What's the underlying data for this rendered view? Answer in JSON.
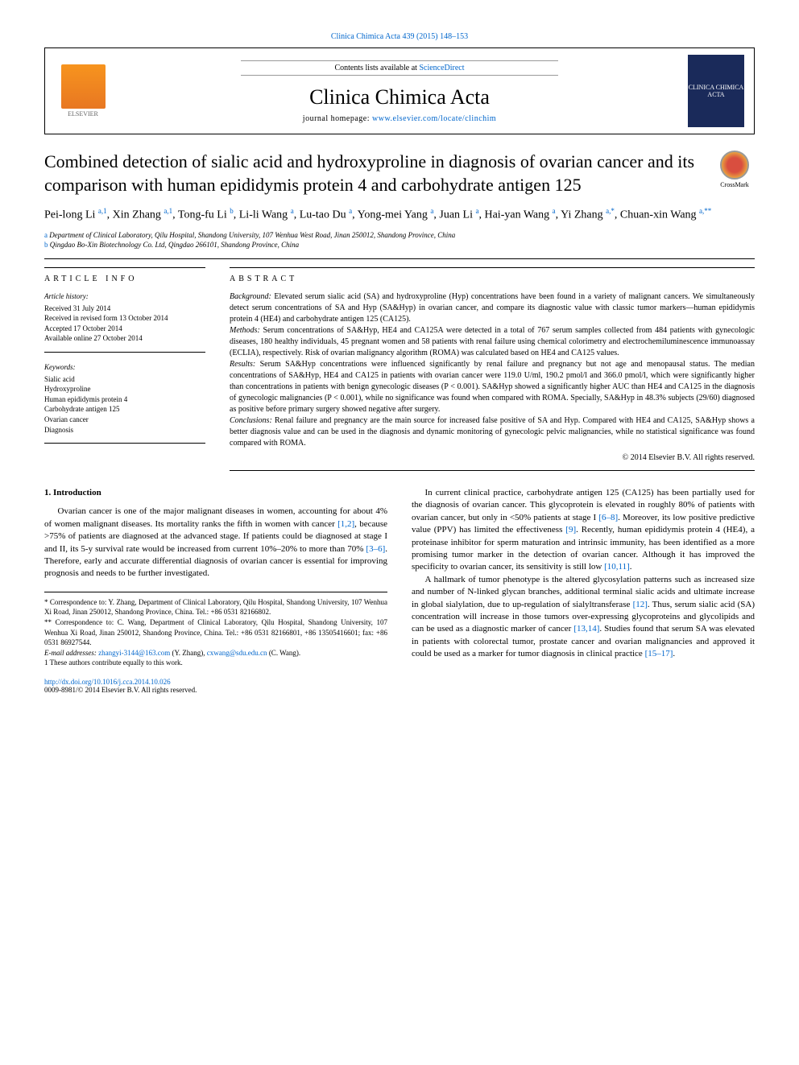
{
  "topRef": "Clinica Chimica Acta 439 (2015) 148–153",
  "header": {
    "contentsLine": "Contents lists available at ",
    "scienceDirect": "ScienceDirect",
    "journalName": "Clinica Chimica Acta",
    "homepagePrefix": "journal homepage: ",
    "homepageUrl": "www.elsevier.com/locate/clinchim",
    "elsevierLabel": "ELSEVIER",
    "coverText": "CLINICA CHIMICA ACTA"
  },
  "crossmark": "CrossMark",
  "title": "Combined detection of sialic acid and hydroxyproline in diagnosis of ovarian cancer and its comparison with human epididymis protein 4 and carbohydrate antigen 125",
  "authorsHtml": "Pei-long Li <sup>a,1</sup>, Xin Zhang <sup>a,1</sup>, Tong-fu Li <sup>b</sup>, Li-li Wang <sup>a</sup>, Lu-tao Du <sup>a</sup>, Yong-mei Yang <sup>a</sup>, Juan Li <sup>a</sup>, Hai-yan Wang <sup>a</sup>, Yi Zhang <sup>a,*</sup>, Chuan-xin Wang <sup>a,**</sup>",
  "affiliations": {
    "a": "Department of Clinical Laboratory, Qilu Hospital, Shandong University, 107 Wenhua West Road, Jinan 250012, Shandong Province, China",
    "b": "Qingdao Bo-Xin Biotechnology Co. Ltd, Qingdao 266101, Shandong Province, China"
  },
  "articleInfo": {
    "heading": "ARTICLE INFO",
    "historyLabel": "Article history:",
    "history": [
      "Received 31 July 2014",
      "Received in revised form 13 October 2014",
      "Accepted 17 October 2014",
      "Available online 27 October 2014"
    ],
    "keywordsLabel": "Keywords:",
    "keywords": [
      "Sialic acid",
      "Hydroxyproline",
      "Human epididymis protein 4",
      "Carbohydrate antigen 125",
      "Ovarian cancer",
      "Diagnosis"
    ]
  },
  "abstract": {
    "heading": "ABSTRACT",
    "background": "Elevated serum sialic acid (SA) and hydroxyproline (Hyp) concentrations have been found in a variety of malignant cancers. We simultaneously detect serum concentrations of SA and Hyp (SA&Hyp) in ovarian cancer, and compare its diagnostic value with classic tumor markers—human epididymis protein 4 (HE4) and carbohydrate antigen 125 (CA125).",
    "methods": "Serum concentrations of SA&Hyp, HE4 and CA125A were detected in a total of 767 serum samples collected from 484 patients with gynecologic diseases, 180 healthy individuals, 45 pregnant women and 58 patients with renal failure using chemical colorimetry and electrochemiluminescence immunoassay (ECLIA), respectively. Risk of ovarian malignancy algorithm (ROMA) was calculated based on HE4 and CA125 values.",
    "results": "Serum SA&Hyp concentrations were influenced significantly by renal failure and pregnancy but not age and menopausal status. The median concentrations of SA&Hyp, HE4 and CA125 in patients with ovarian cancer were 119.0 U/ml, 190.2 pmol/l and 366.0 pmol/l, which were significantly higher than concentrations in patients with benign gynecologic diseases (P < 0.001). SA&Hyp showed a significantly higher AUC than HE4 and CA125 in the diagnosis of gynecologic malignancies (P < 0.001), while no significance was found when compared with ROMA. Specially, SA&Hyp in 48.3% subjects (29/60) diagnosed as positive before primary surgery showed negative after surgery.",
    "conclusions": "Renal failure and pregnancy are the main source for increased false positive of SA and Hyp. Compared with HE4 and CA125, SA&Hyp shows a better diagnosis value and can be used in the diagnosis and dynamic monitoring of gynecologic pelvic malignancies, while no statistical significance was found compared with ROMA.",
    "copyright": "© 2014 Elsevier B.V. All rights reserved."
  },
  "body": {
    "introHeading": "1. Introduction",
    "leftParas": [
      "Ovarian cancer is one of the major malignant diseases in women, accounting for about 4% of women malignant diseases. Its mortality ranks the fifth in women with cancer [1,2], because >75% of patients are diagnosed at the advanced stage. If patients could be diagnosed at stage I and II, its 5-y survival rate would be increased from current 10%–20% to more than 70% [3–6]. Therefore, early and accurate differential diagnosis of ovarian cancer is essential for improving prognosis and needs to be further investigated."
    ],
    "rightParas": [
      "In current clinical practice, carbohydrate antigen 125 (CA125) has been partially used for the diagnosis of ovarian cancer. This glycoprotein is elevated in roughly 80% of patients with ovarian cancer, but only in <50% patients at stage I [6–8]. Moreover, its low positive predictive value (PPV) has limited the effectiveness [9]. Recently, human epididymis protein 4 (HE4), a proteinase inhibitor for sperm maturation and intrinsic immunity, has been identified as a more promising tumor marker in the detection of ovarian cancer. Although it has improved the specificity to ovarian cancer, its sensitivity is still low [10,11].",
      "A hallmark of tumor phenotype is the altered glycosylation patterns such as increased size and number of N-linked glycan branches, additional terminal sialic acids and ultimate increase in global sialylation, due to up-regulation of sialyltransferase [12]. Thus, serum sialic acid (SA) concentration will increase in those tumors over-expressing glycoproteins and glycolipids and can be used as a diagnostic marker of cancer [13,14]. Studies found that serum SA was elevated in patients with colorectal tumor, prostate cancer and ovarian malignancies and approved it could be used as a marker for tumor diagnosis in clinical practice [15–17]."
    ],
    "refLinks": {
      "r1": "[1,2]",
      "r2": "[3–6]",
      "r3": "[6–8]",
      "r4": "[9]",
      "r5": "[10,11]",
      "r6": "[12]",
      "r7": "[13,14]",
      "r8": "[15–17]"
    }
  },
  "footnotes": {
    "corr1": "* Correspondence to: Y. Zhang, Department of Clinical Laboratory, Qilu Hospital, Shandong University, 107 Wenhua Xi Road, Jinan 250012, Shandong Province, China. Tel.: +86 0531 82166802.",
    "corr2": "** Correspondence to: C. Wang, Department of Clinical Laboratory, Qilu Hospital, Shandong University, 107 Wenhua Xi Road, Jinan 250012, Shandong Province, China. Tel.: +86 0531 82166801, +86 13505416601; fax: +86 0531 86927544.",
    "emailsLabel": "E-mail addresses: ",
    "email1": "zhangyi-3144@163.com",
    "email1Who": " (Y. Zhang), ",
    "email2": "cxwang@sdu.edu.cn",
    "email2Who": " (C. Wang).",
    "equal": "1 These authors contribute equally to this work."
  },
  "bottom": {
    "doi": "http://dx.doi.org/10.1016/j.cca.2014.10.026",
    "issn": "0009-8981/© 2014 Elsevier B.V. All rights reserved."
  }
}
